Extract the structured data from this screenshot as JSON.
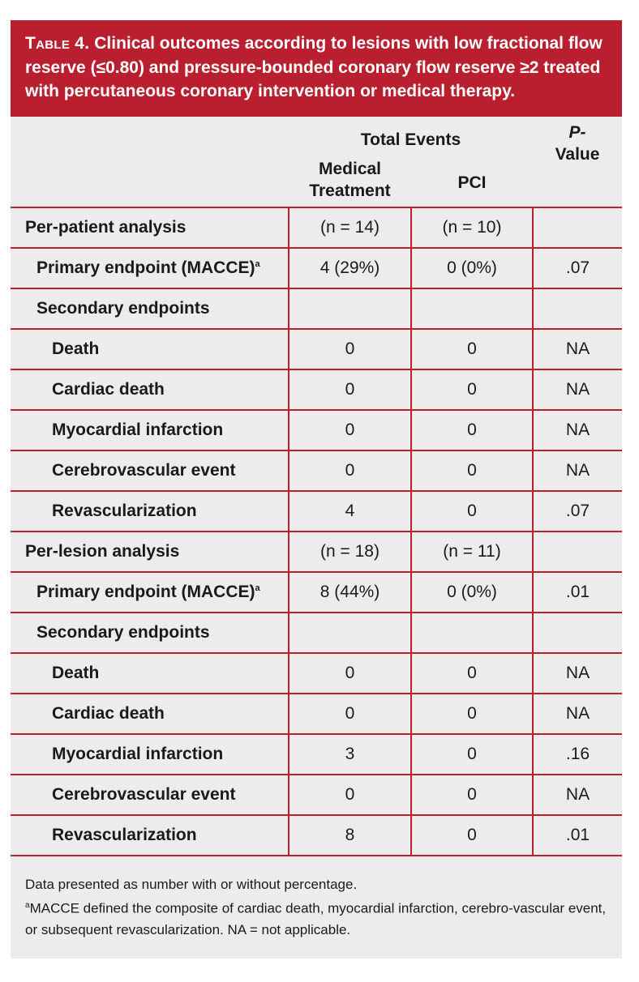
{
  "title": {
    "lead": "Table 4.",
    "text": " Clinical outcomes according to lesions with low fractional flow reserve (≤0.80) and pressure-bounded coronary flow reserve ≥2 treated with percutaneous coronary intervention or medical therapy."
  },
  "header": {
    "group": "Total Events",
    "col_medical": "Medical Treatment",
    "col_pci": "PCI",
    "col_p_italic": "P-",
    "col_p_rest": "Value"
  },
  "rows": [
    {
      "label": "Per-patient analysis",
      "sup": "",
      "medical": "(n = 14)",
      "pci": "(n = 10)",
      "p": ""
    },
    {
      "label": "Primary endpoint (MACCE)",
      "sup": "a",
      "medical": "4 (29%)",
      "pci": "0 (0%)",
      "p": ".07"
    },
    {
      "label": "Secondary endpoints",
      "sup": "",
      "medical": "",
      "pci": "",
      "p": ""
    },
    {
      "label": "Death",
      "sup": "",
      "medical": "0",
      "pci": "0",
      "p": "NA"
    },
    {
      "label": "Cardiac death",
      "sup": "",
      "medical": "0",
      "pci": "0",
      "p": "NA"
    },
    {
      "label": "Myocardial infarction",
      "sup": "",
      "medical": "0",
      "pci": "0",
      "p": "NA"
    },
    {
      "label": "Cerebrovascular event",
      "sup": "",
      "medical": "0",
      "pci": "0",
      "p": "NA"
    },
    {
      "label": "Revascularization",
      "sup": "",
      "medical": "4",
      "pci": "0",
      "p": ".07"
    },
    {
      "label": "Per-lesion analysis",
      "sup": "",
      "medical": "(n = 18)",
      "pci": "(n = 11)",
      "p": ""
    },
    {
      "label": "Primary endpoint (MACCE)",
      "sup": "a",
      "medical": "8 (44%)",
      "pci": "0 (0%)",
      "p": ".01"
    },
    {
      "label": "Secondary endpoints",
      "sup": "",
      "medical": "",
      "pci": "",
      "p": ""
    },
    {
      "label": "Death",
      "sup": "",
      "medical": "0",
      "pci": "0",
      "p": "NA"
    },
    {
      "label": "Cardiac death",
      "sup": "",
      "medical": "0",
      "pci": "0",
      "p": "NA"
    },
    {
      "label": "Myocardial infarction",
      "sup": "",
      "medical": "3",
      "pci": "0",
      "p": ".16"
    },
    {
      "label": "Cerebrovascular event",
      "sup": "",
      "medical": "0",
      "pci": "0",
      "p": "NA"
    },
    {
      "label": "Revascularization",
      "sup": "",
      "medical": "8",
      "pci": "0",
      "p": ".01"
    }
  ],
  "footnotes": {
    "line1": "Data presented as number with or without percentage.",
    "line2_sup": "a",
    "line2": "MACCE defined the composite of cardiac death, myocardial infarction, cerebro-vascular event, or subsequent revascularization. NA = not applicable."
  }
}
